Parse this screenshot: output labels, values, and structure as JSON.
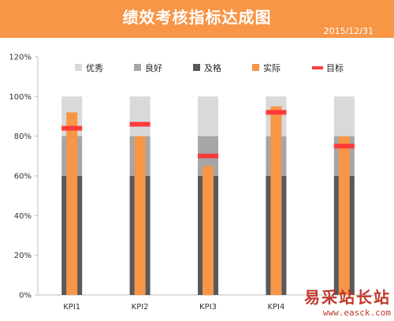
{
  "header": {
    "title": "绩效考核指标达成图",
    "date": "2015/12/31"
  },
  "watermark": {
    "brand": "易采站长站",
    "url": "www.easck.com"
  },
  "colors": {
    "header_bg": "#f79646",
    "excellent": "#d9d9d9",
    "good": "#a6a6a6",
    "pass": "#595959",
    "actual": "#f79646",
    "target": "#ff3b3b"
  },
  "chart_data": {
    "type": "bar",
    "categories": [
      "KPI1",
      "KPI2",
      "KPI3",
      "KPI4",
      ""
    ],
    "ylim": [
      0,
      1.2
    ],
    "yticks": [
      "0%",
      "20%",
      "40%",
      "60%",
      "80%",
      "100%",
      "120%"
    ],
    "grid": false,
    "legend_position": "top",
    "legend": [
      "优秀",
      "良好",
      "及格",
      "实际",
      "目标"
    ],
    "bands": {
      "pass": [
        0.6,
        0.6,
        0.6,
        0.6,
        0.6
      ],
      "good": [
        0.8,
        0.8,
        0.8,
        0.8,
        0.8
      ],
      "excellent": [
        1.0,
        1.0,
        1.0,
        1.0,
        1.0
      ]
    },
    "series": [
      {
        "name": "实际",
        "values": [
          0.92,
          0.8,
          0.65,
          0.95,
          0.8
        ]
      },
      {
        "name": "目标",
        "values": [
          0.84,
          0.86,
          0.7,
          0.92,
          0.75
        ]
      }
    ]
  }
}
